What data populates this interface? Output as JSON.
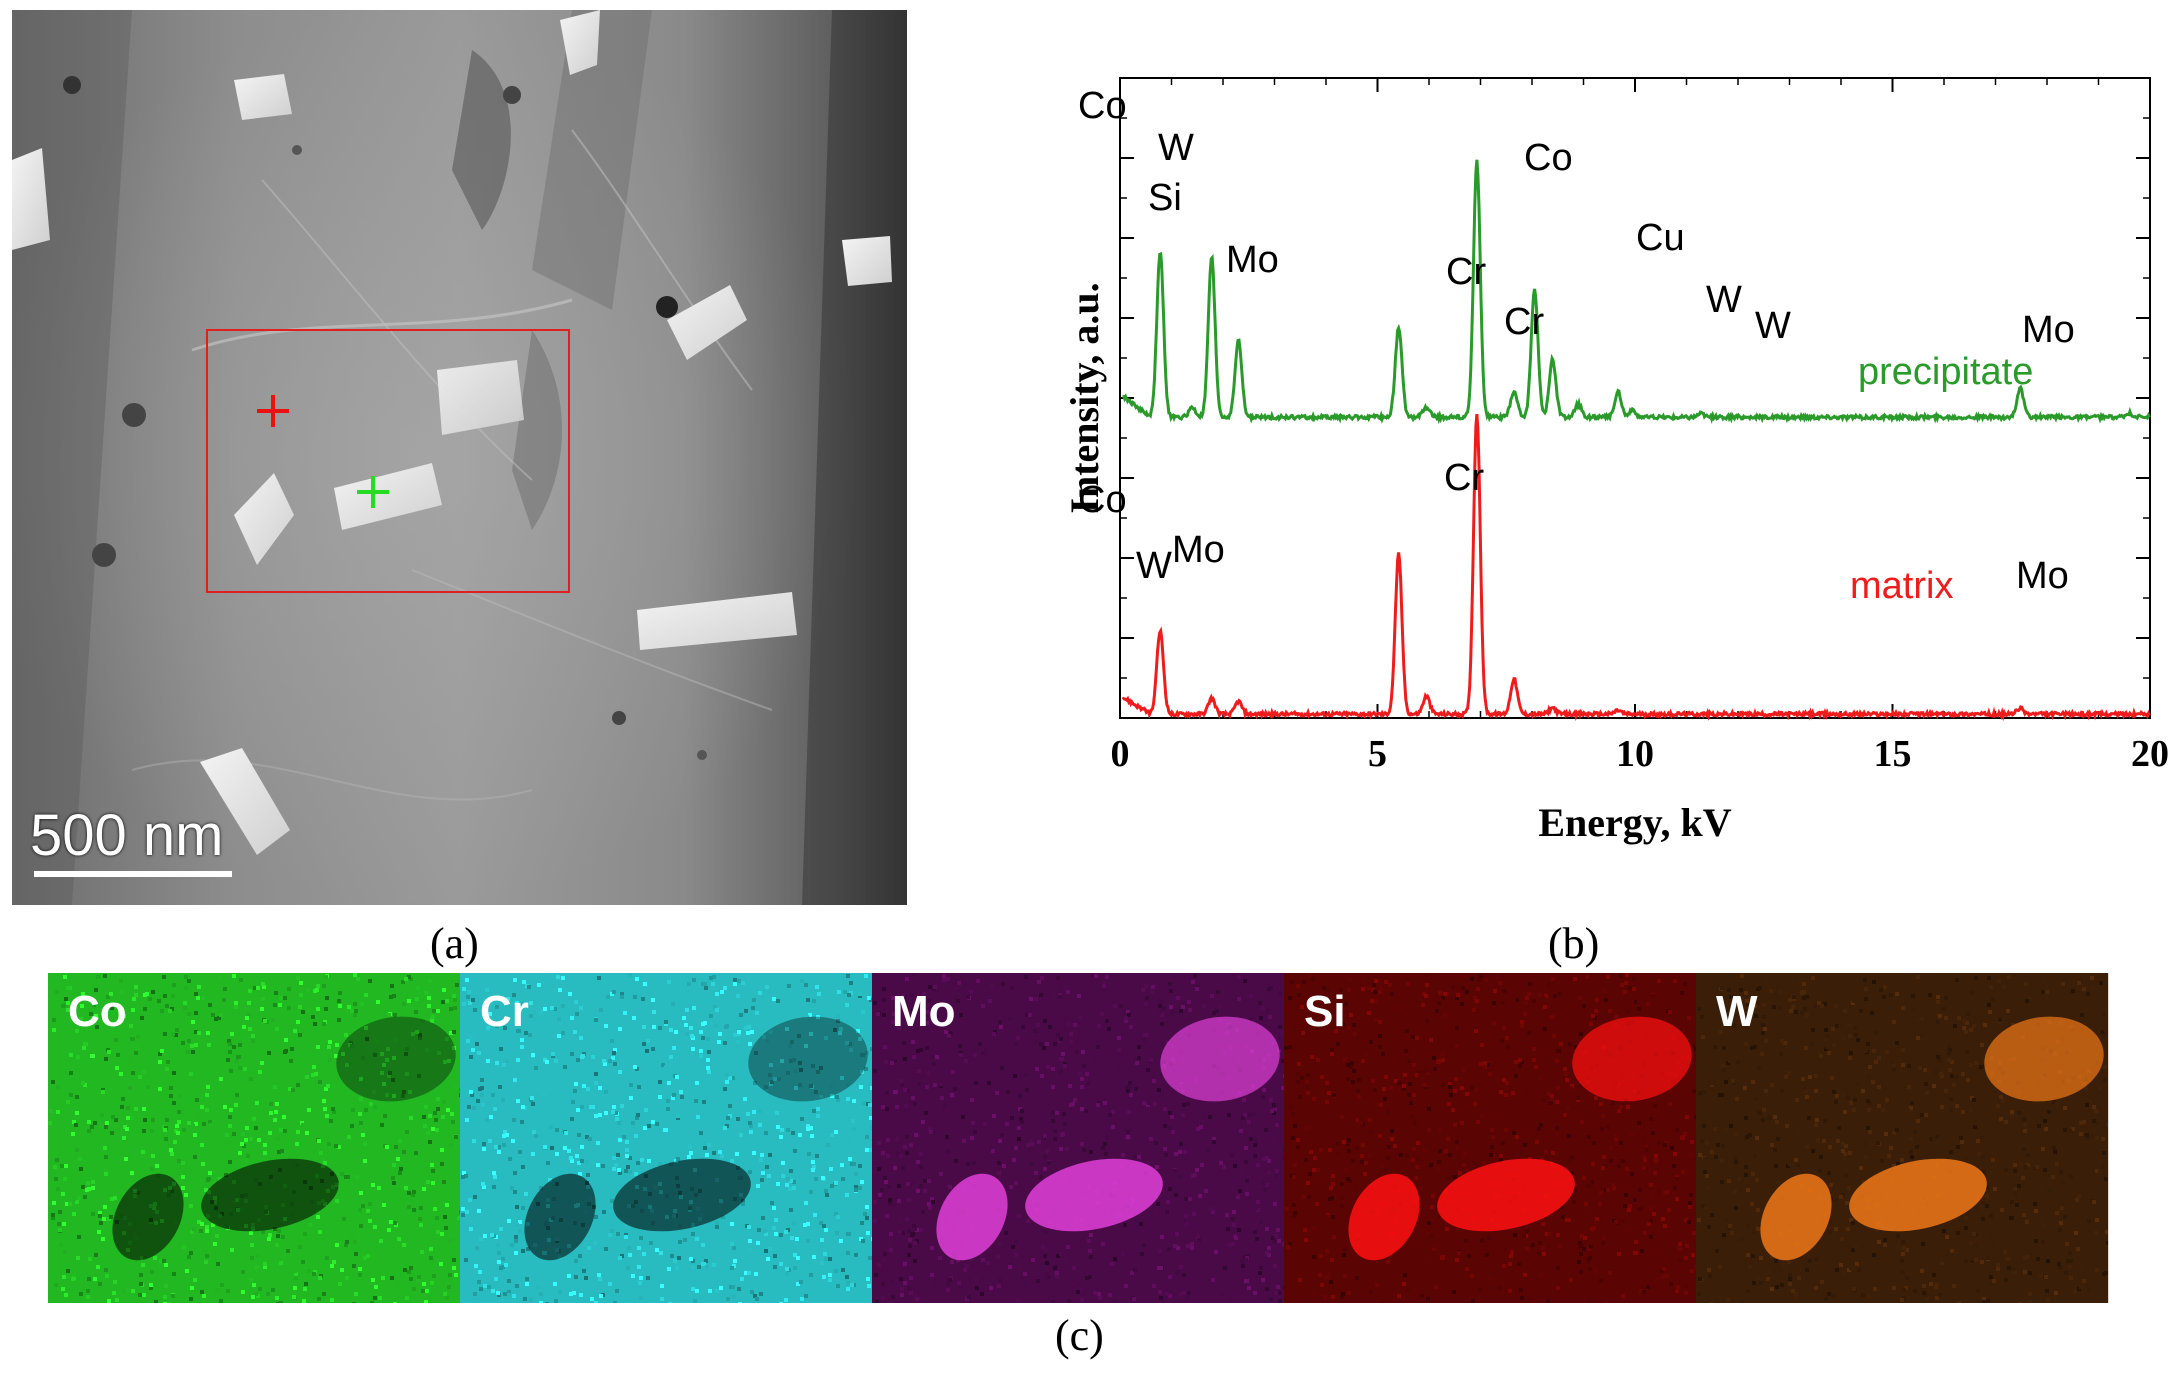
{
  "panel_a": {
    "caption": "(a)",
    "scale_bar_label": "500 nm"
  },
  "panel_b": {
    "caption": "(b)"
  },
  "panel_c": {
    "caption": "(c)",
    "maps": [
      {
        "label": "Co",
        "color": "#22b822",
        "particle_mode": "dark"
      },
      {
        "label": "Cr",
        "color": "#28bcc0",
        "particle_mode": "dark"
      },
      {
        "label": "Mo",
        "color": "#4a0a48",
        "particle_mode": "bright",
        "particle_color": "#e040d8"
      },
      {
        "label": "Si",
        "color": "#5a0404",
        "particle_mode": "bright",
        "particle_color": "#ff1010"
      },
      {
        "label": "W",
        "color": "#3a1e08",
        "particle_mode": "bright",
        "particle_color": "#f07818"
      }
    ]
  },
  "chart_data": {
    "type": "line",
    "xlabel": "Energy, kV",
    "ylabel": "Intensity, a.u.",
    "xlim": [
      0,
      20
    ],
    "ylim": [
      0,
      100
    ],
    "x_ticks": [
      0,
      5,
      10,
      15,
      20
    ],
    "series": [
      {
        "name": "precipitate",
        "color": "#2a9a2a",
        "baseline": 47,
        "peaks": [
          {
            "x": 0.78,
            "h": 26,
            "label": "Co"
          },
          {
            "x": 1.4,
            "h": 1.5,
            "label": ""
          },
          {
            "x": 1.78,
            "h": 25,
            "label": "W Si"
          },
          {
            "x": 2.3,
            "h": 12,
            "label": "Mo"
          },
          {
            "x": 5.41,
            "h": 14,
            "label": "Cr"
          },
          {
            "x": 5.95,
            "h": 1.5,
            "label": "Cr"
          },
          {
            "x": 6.93,
            "h": 40,
            "label": "Co"
          },
          {
            "x": 7.65,
            "h": 4,
            "label": ""
          },
          {
            "x": 8.05,
            "h": 20,
            "label": "Cu"
          },
          {
            "x": 8.4,
            "h": 9,
            "label": "W"
          },
          {
            "x": 8.9,
            "h": 2,
            "label": ""
          },
          {
            "x": 9.67,
            "h": 4,
            "label": "W"
          },
          {
            "x": 9.95,
            "h": 1,
            "label": ""
          },
          {
            "x": 11.28,
            "h": 0.6,
            "label": ""
          },
          {
            "x": 17.48,
            "h": 4.5,
            "label": "Mo"
          },
          {
            "x": 19.6,
            "h": 0.6,
            "label": ""
          }
        ]
      },
      {
        "name": "matrix",
        "color": "#ee1c1c",
        "baseline": 0.6,
        "peaks": [
          {
            "x": 0.78,
            "h": 13,
            "label": "Co"
          },
          {
            "x": 1.78,
            "h": 2.5,
            "label": "W"
          },
          {
            "x": 2.3,
            "h": 2,
            "label": "Mo"
          },
          {
            "x": 5.41,
            "h": 25,
            "label": "Cr"
          },
          {
            "x": 5.95,
            "h": 2.8,
            "label": ""
          },
          {
            "x": 6.93,
            "h": 47,
            "label": ""
          },
          {
            "x": 7.65,
            "h": 5.5,
            "label": ""
          },
          {
            "x": 8.4,
            "h": 1,
            "label": ""
          },
          {
            "x": 9.67,
            "h": 0.6,
            "label": ""
          },
          {
            "x": 17.48,
            "h": 0.9,
            "label": "Mo"
          }
        ]
      }
    ],
    "annotations": [
      {
        "text": "Co",
        "series": "precipitate"
      },
      {
        "text": "W",
        "series": "precipitate"
      },
      {
        "text": "Si",
        "series": "precipitate"
      },
      {
        "text": "Mo",
        "series": "precipitate"
      },
      {
        "text": "Cr",
        "series": "precipitate"
      },
      {
        "text": "Cr",
        "series": "precipitate"
      },
      {
        "text": "Co",
        "series": "precipitate"
      },
      {
        "text": "Cu",
        "series": "precipitate"
      },
      {
        "text": "W",
        "series": "precipitate"
      },
      {
        "text": "W",
        "series": "precipitate"
      },
      {
        "text": "precipitate",
        "series": "precipitate"
      },
      {
        "text": "Mo",
        "series": "precipitate"
      },
      {
        "text": "Cr",
        "series": "matrix"
      },
      {
        "text": "Co",
        "series": "matrix"
      },
      {
        "text": "W",
        "series": "matrix"
      },
      {
        "text": "Mo",
        "series": "matrix"
      },
      {
        "text": "matrix",
        "series": "matrix"
      },
      {
        "text": "Mo",
        "series": "matrix"
      }
    ]
  }
}
